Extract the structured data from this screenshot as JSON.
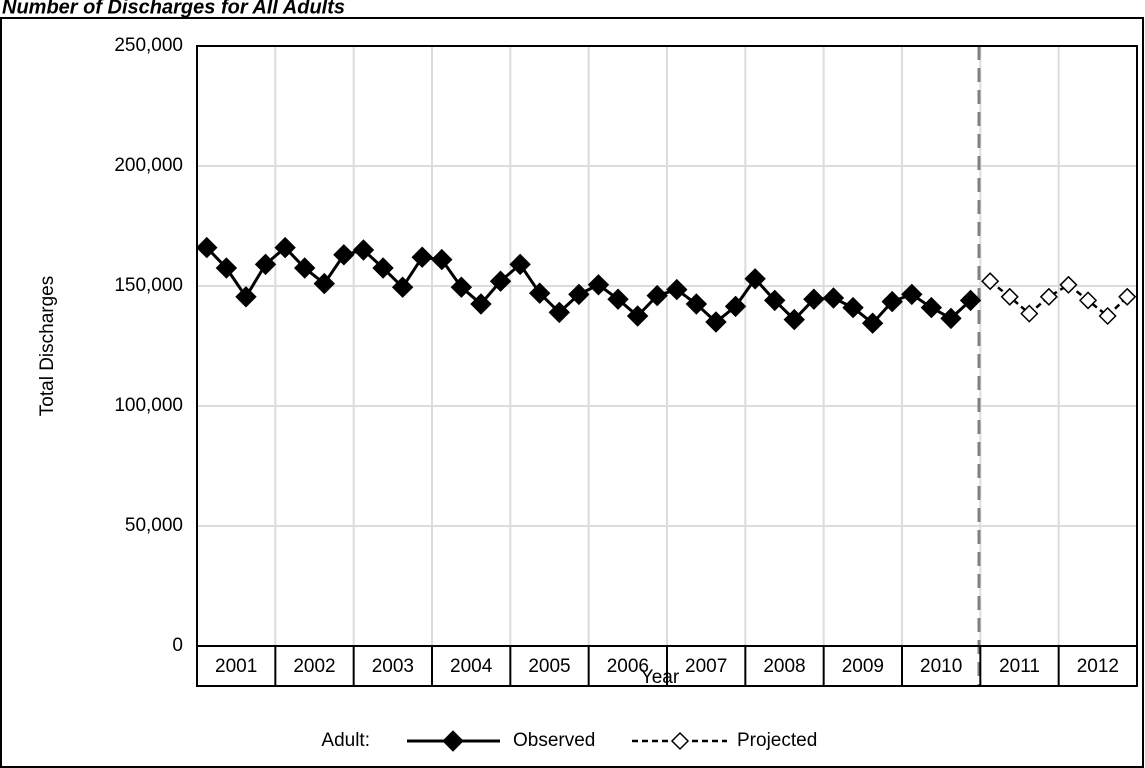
{
  "chart_data": {
    "type": "line",
    "title": "Number of Discharges for All Adults",
    "x_label": "Year",
    "y_label": "Total Discharges",
    "legend_title": "Adult:",
    "categories": [
      "2001",
      "2002",
      "2003",
      "2004",
      "2005",
      "2006",
      "2007",
      "2008",
      "2009",
      "2010",
      "2011",
      "2012"
    ],
    "series": [
      {
        "name": "Observed",
        "color": "#000000",
        "dashed": false,
        "marker": "filled-diamond",
        "values": [
          [
            166000,
            157500,
            145500,
            159000
          ],
          [
            166000,
            157500,
            151000,
            163000
          ],
          [
            165000,
            157500,
            149500,
            162000
          ],
          [
            161000,
            149500,
            142500,
            152000
          ],
          [
            159000,
            147000,
            139000,
            146500
          ],
          [
            150500,
            144500,
            137500,
            146000
          ],
          [
            148500,
            142500,
            135000,
            141500
          ],
          [
            153000,
            144000,
            136000,
            144500
          ],
          [
            145000,
            141000,
            134500,
            143500
          ],
          [
            146500,
            141000,
            136500,
            144000
          ],
          null,
          null
        ]
      },
      {
        "name": "Projected",
        "color": "#000000",
        "dashed": true,
        "marker": "open-diamond",
        "values": [
          null,
          null,
          null,
          null,
          null,
          null,
          null,
          null,
          null,
          null,
          [
            152000,
            145500,
            138500,
            145500
          ],
          [
            150500,
            144000,
            137500,
            145500
          ]
        ]
      }
    ],
    "ylim": [
      0,
      250000
    ],
    "yticks": [
      0,
      {
        "value": 50000,
        "label": "50,000"
      },
      {
        "value": 100000,
        "label": "100,000"
      },
      {
        "value": 150000,
        "label": "150,000"
      },
      {
        "value": 200000,
        "label": "200,000"
      },
      {
        "value": 250000,
        "label": "250,000"
      }
    ],
    "grid": true
  }
}
